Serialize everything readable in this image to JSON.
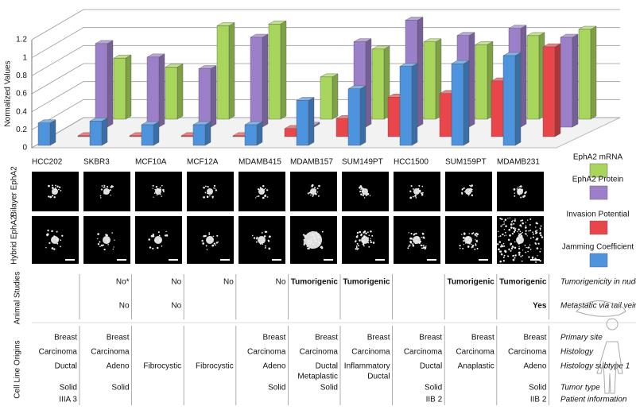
{
  "chart_data": {
    "type": "bar3d",
    "y_label": "Normalized Values",
    "categories": [
      "HCC202",
      "SKBR3",
      "MCF10A",
      "MCF12A",
      "MDAMB415",
      "MDAMB157",
      "SUM149PT",
      "HCC1500",
      "SUM159PT",
      "MDAMB231"
    ],
    "category_colors": [
      "#111111",
      "#111111",
      "#111111",
      "#111111",
      "#111111",
      "#d7262b",
      "#d7262b",
      "#d7262b",
      "#d7262b",
      "#d7262b"
    ],
    "ylim": [
      0,
      1.2
    ],
    "yticks": [
      0,
      0.2,
      0.4,
      0.6,
      0.8,
      1,
      1.2
    ],
    "grid": true,
    "series": [
      {
        "name": "Jamming Coefficient",
        "color": "#4d93de",
        "values": [
          0.25,
          0.27,
          0.23,
          0.23,
          0.23,
          0.5,
          0.63,
          0.88,
          0.91,
          1.0
        ]
      },
      {
        "name": "Invasion Potential",
        "color": "#e8464a",
        "values": [
          0.01,
          0.01,
          0.01,
          0.01,
          0.09,
          0.2,
          0.44,
          0.48,
          0.62,
          1.0
        ]
      },
      {
        "name": "EphA2 Protein",
        "color": "#9b80c9",
        "values": [
          0.93,
          0.78,
          0.65,
          1.0,
          0.02,
          0.95,
          1.19,
          1.02,
          1.1,
          1.0
        ]
      },
      {
        "name": "EphA2 mRNA",
        "color": "#a8d65c",
        "values": [
          0.68,
          0.58,
          1.04,
          1.06,
          0.47,
          0.78,
          0.86,
          0.83,
          0.93,
          1.0
        ]
      }
    ]
  },
  "image_rows": [
    "Bilayer EphA2",
    "Hybrid EphA2"
  ],
  "animal_studies": {
    "title": "Animal Studies",
    "highlight_color": "#d7262b",
    "rows": [
      {
        "label": "Tumorigenicity in nude mice",
        "values": [
          null,
          "No*",
          "No",
          "No",
          "No",
          "Tumorigenic",
          "Tumorigenic",
          null,
          "Tumorigenic",
          "Tumorigenic"
        ],
        "highlighted": [
          5,
          6,
          8,
          9
        ]
      },
      {
        "label": "Metastatic via tail vein",
        "values": [
          null,
          "No",
          "No",
          null,
          null,
          null,
          null,
          null,
          null,
          "Yes"
        ],
        "highlighted": [
          9
        ]
      }
    ]
  },
  "origins": {
    "title": "Cell Line Origins",
    "rows": [
      {
        "label": "Primary site",
        "values": [
          "Breast",
          "Breast",
          null,
          null,
          "Breast",
          "Breast",
          "Breast",
          "Breast",
          "Breast",
          "Breast"
        ]
      },
      {
        "label": "Histology",
        "values": [
          "Carcinoma",
          "Carcinoma",
          null,
          null,
          "Carcinoma",
          "Carcinoma",
          "Carcinoma",
          "Carcinoma",
          "Carcinoma",
          "Carcinoma"
        ]
      },
      {
        "label": "Histology subtype 1",
        "values": [
          "Ductal",
          "Adeno",
          "Fibrocystic",
          "Fibrocystic",
          "Adeno",
          "Ductal",
          "Inflammatory",
          "Ductal",
          "Anaplastic",
          "Adeno"
        ],
        "values_line2": [
          null,
          null,
          null,
          null,
          null,
          "Metaplastic",
          "Ductal",
          null,
          null,
          null
        ]
      },
      {
        "label": "Tumor type",
        "values": [
          "Solid",
          "Solid",
          null,
          null,
          "Solid",
          "Solid",
          null,
          "Solid",
          null,
          "Solid"
        ]
      },
      {
        "label": "Patient information",
        "values": [
          "IIIA 3",
          null,
          null,
          null,
          null,
          null,
          null,
          "IIB 2",
          null,
          "IIB 2"
        ]
      }
    ]
  }
}
